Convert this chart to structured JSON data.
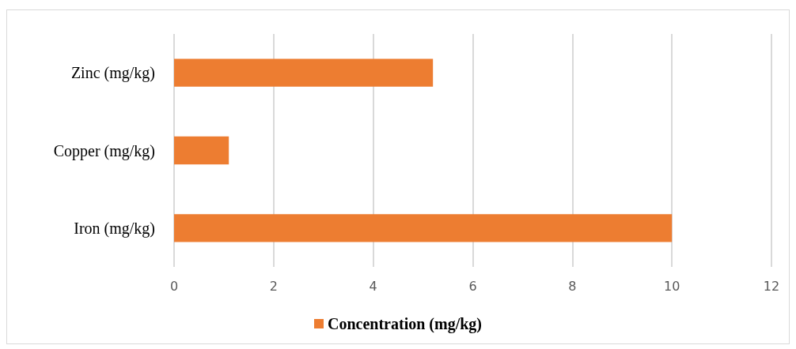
{
  "chart_data": {
    "type": "bar",
    "orientation": "horizontal",
    "categories": [
      "Zinc (mg/kg)",
      "Copper (mg/kg)",
      "Iron (mg/kg)"
    ],
    "series": [
      {
        "name": "Concentration (mg/kg)",
        "color": "#ed7d31",
        "values": [
          5.2,
          1.1,
          10
        ]
      }
    ],
    "xlim": [
      0,
      12
    ],
    "xticks": [
      0,
      2,
      4,
      6,
      8,
      10,
      12
    ],
    "grid": "x",
    "legend": "bottom"
  }
}
